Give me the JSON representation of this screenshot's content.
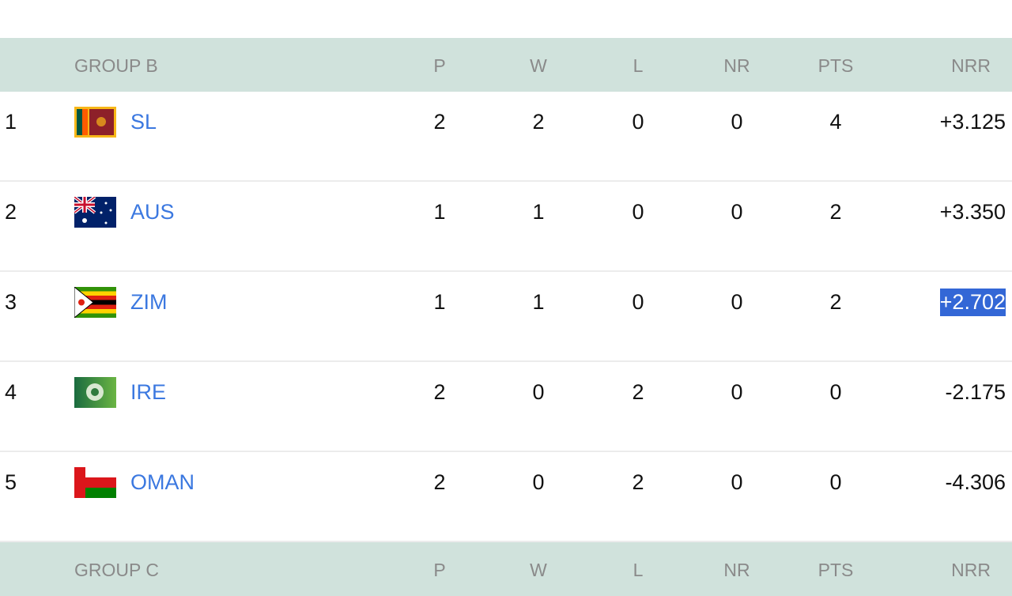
{
  "groups": [
    {
      "title": "GROUP B",
      "columns": [
        "P",
        "W",
        "L",
        "NR",
        "PTS",
        "NRR"
      ],
      "rows": [
        {
          "pos": "1",
          "team": "SL",
          "flag": "sri-lanka-flag",
          "p": "2",
          "w": "2",
          "l": "0",
          "nr": "0",
          "pts": "4",
          "nrr": "+3.125"
        },
        {
          "pos": "2",
          "team": "AUS",
          "flag": "australia-flag",
          "p": "1",
          "w": "1",
          "l": "0",
          "nr": "0",
          "pts": "2",
          "nrr": "+3.350"
        },
        {
          "pos": "3",
          "team": "ZIM",
          "flag": "zimbabwe-flag",
          "p": "1",
          "w": "1",
          "l": "0",
          "nr": "0",
          "pts": "2",
          "nrr": "+2.702",
          "selected": true
        },
        {
          "pos": "4",
          "team": "IRE",
          "flag": "ireland-cricket-flag",
          "p": "2",
          "w": "0",
          "l": "2",
          "nr": "0",
          "pts": "0",
          "nrr": "-2.175"
        },
        {
          "pos": "5",
          "team": "OMAN",
          "flag": "oman-flag",
          "p": "2",
          "w": "0",
          "l": "2",
          "nr": "0",
          "pts": "0",
          "nrr": "-4.306"
        }
      ]
    },
    {
      "title": "GROUP C",
      "columns": [
        "P",
        "W",
        "L",
        "NR",
        "PTS",
        "NRR"
      ]
    }
  ],
  "colors": {
    "header_bg": "#d0e2dc",
    "link": "#3b78e0",
    "selection": "#3367d6"
  }
}
